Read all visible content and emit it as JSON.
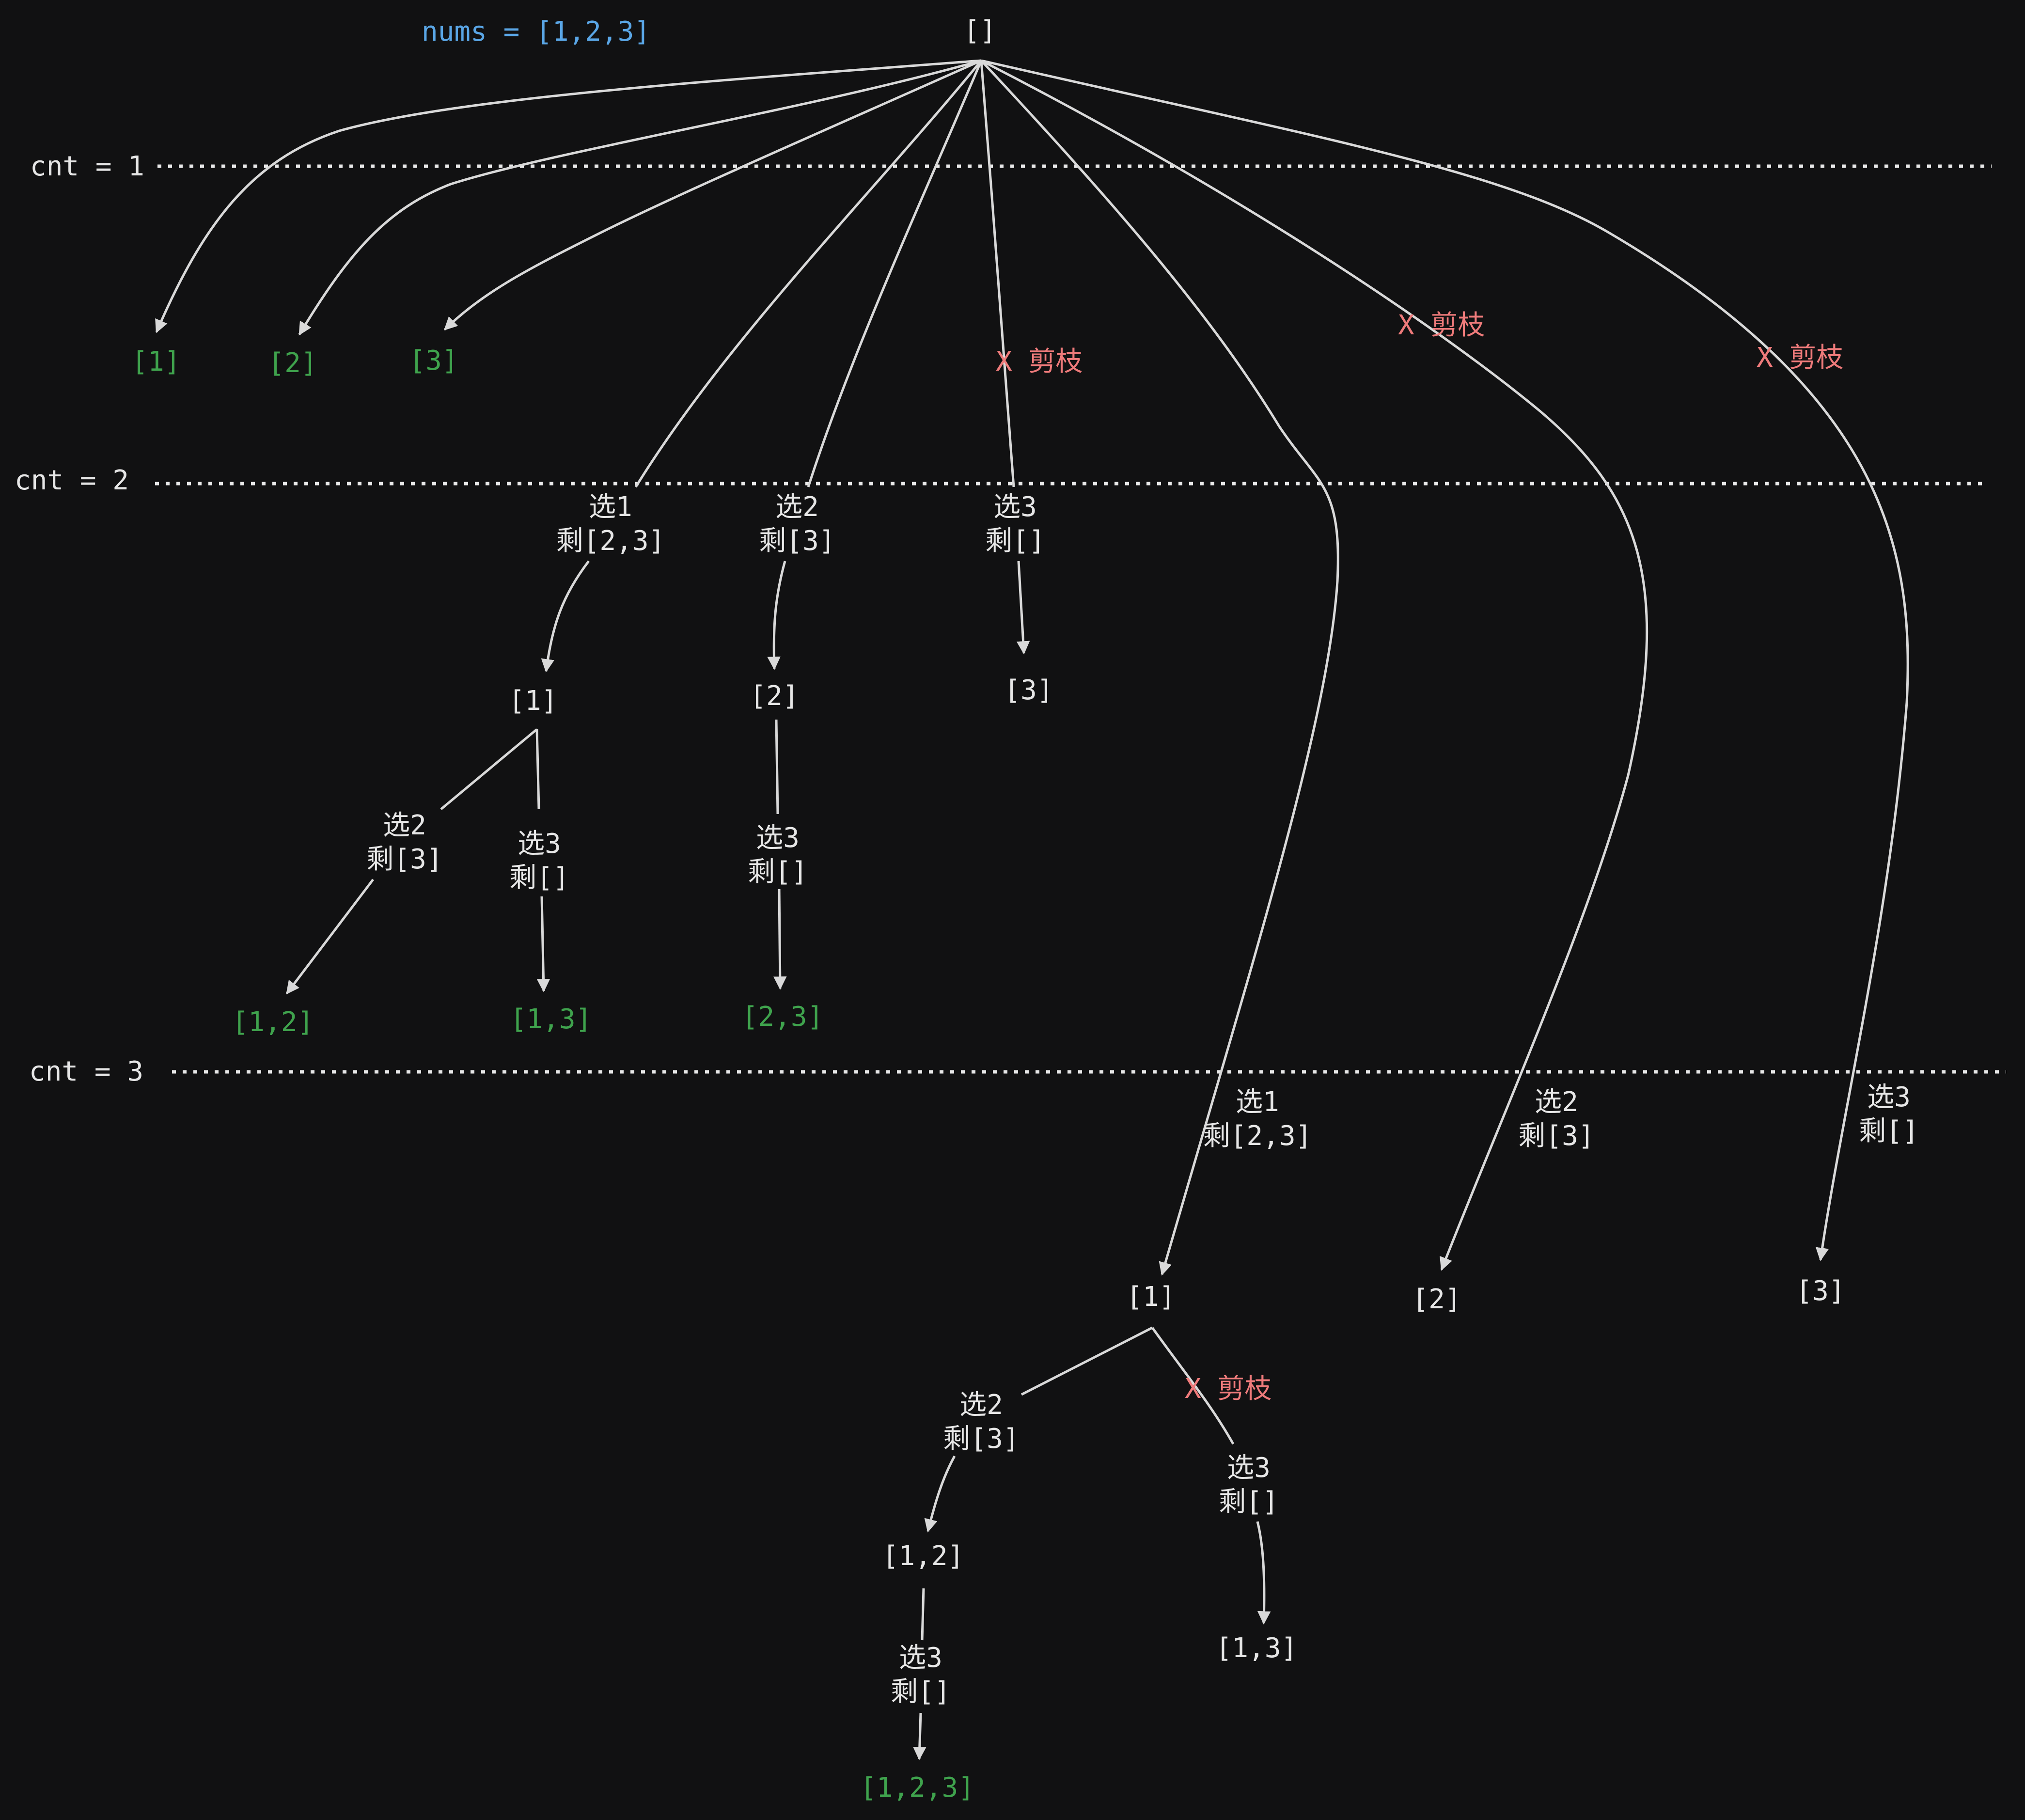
{
  "colors": {
    "background": "#111112",
    "default_text": "#e6e6e6",
    "result": "#3fa34d",
    "pruned": "#ef7b7b",
    "header": "#5aa6e6",
    "edge": "#d9d9d9"
  },
  "header": "nums = [1,2,3]",
  "levels": [
    "cnt = 1",
    "cnt = 2",
    "cnt = 3"
  ],
  "prune_label": "X 剪枝",
  "nodes": {
    "root": "[]",
    "l1_1": "[1]",
    "l1_2": "[2]",
    "l1_3": "[3]",
    "l2_1": "[1]",
    "l2_2": "[2]",
    "l2_3": "[3]",
    "l2_12": "[1,2]",
    "l2_13": "[1,3]",
    "l2_23": "[2,3]",
    "l3_1": "[1]",
    "l3_2": "[2]",
    "l3_3": "[3]",
    "l3_12": "[1,2]",
    "l3_13": "[1,3]",
    "l3_123": "[1,2,3]"
  },
  "edge_labels": {
    "c2_pick1": [
      "选1",
      "剩[2,3]"
    ],
    "c2_pick2": [
      "选2",
      "剩[3]"
    ],
    "c2_pick3": [
      "选3",
      "剩[]"
    ],
    "c2_1_pick2": [
      "选2",
      "剩[3]"
    ],
    "c2_1_pick3": [
      "选3",
      "剩[]"
    ],
    "c2_2_pick3": [
      "选3",
      "剩[]"
    ],
    "c3_pick1": [
      "选1",
      "剩[2,3]"
    ],
    "c3_pick2": [
      "选2",
      "剩[3]"
    ],
    "c3_pick3": [
      "选3",
      "剩[]"
    ],
    "c3_1_pick2": [
      "选2",
      "剩[3]"
    ],
    "c3_1_pick3": [
      "选3",
      "剩[]"
    ],
    "c3_12_pick3": [
      "选3",
      "剩[]"
    ]
  }
}
